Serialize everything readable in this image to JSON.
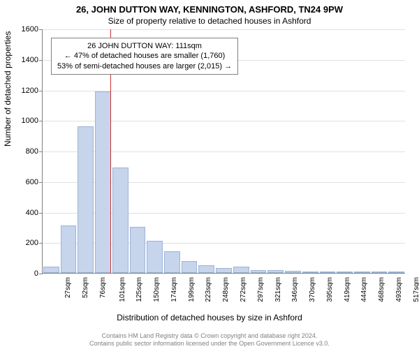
{
  "title_main": "26, JOHN DUTTON WAY, KENNINGTON, ASHFORD, TN24 9PW",
  "title_sub": "Size of property relative to detached houses in Ashford",
  "ylabel": "Number of detached properties",
  "xlabel": "Distribution of detached houses by size in Ashford",
  "chart": {
    "type": "histogram",
    "ylim": [
      0,
      1600
    ],
    "ytick_step": 200,
    "bar_fill": "#c6d4ec",
    "bar_border": "#9db4d8",
    "grid_color": "#e0e0e0",
    "axis_color": "#808080",
    "background": "#ffffff",
    "marker_color": "#cc3333",
    "marker_x_sqm": 111,
    "x_start": 27,
    "x_step": 24.5,
    "x_labels_sqm": [
      27,
      52,
      76,
      101,
      125,
      150,
      174,
      199,
      223,
      248,
      272,
      297,
      321,
      346,
      370,
      395,
      419,
      444,
      468,
      493,
      517
    ],
    "values": [
      40,
      310,
      960,
      1190,
      690,
      300,
      210,
      140,
      80,
      50,
      30,
      40,
      20,
      20,
      12,
      10,
      10,
      8,
      5,
      5,
      3
    ]
  },
  "annotation": {
    "line1": "26 JOHN DUTTON WAY: 111sqm",
    "line2": "← 47% of detached houses are smaller (1,760)",
    "line3": "53% of semi-detached houses are larger (2,015) →"
  },
  "footer": {
    "line1": "Contains HM Land Registry data © Crown copyright and database right 2024.",
    "line2": "Contains public sector information licensed under the Open Government Licence v3.0."
  }
}
